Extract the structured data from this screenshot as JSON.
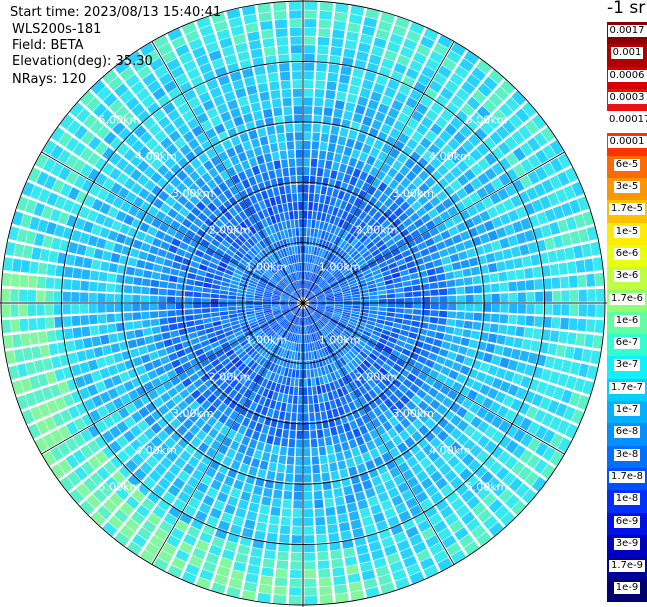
{
  "info": {
    "start_time": "Start time: 2023/08/13 15:40:41",
    "instrument": "WLS200s-181",
    "field": "Field: BETA",
    "elevation": "Elevation(deg): 35.30",
    "nrays": "NRays: 120"
  },
  "colorbar": {
    "units": "-1 sr",
    "levels": [
      {
        "label": "0.0017",
        "color": "#8b0000"
      },
      {
        "label": "0.001",
        "color": "#b00000"
      },
      {
        "label": "0.0006",
        "color": "#d40000"
      },
      {
        "label": "0.0003",
        "color": "#ee1010"
      },
      {
        "label": "0.00017",
        "color": "#ffffff"
      },
      {
        "label": "0.0001",
        "color": "#ff3300"
      },
      {
        "label": "6e-5",
        "color": "#ff6a00"
      },
      {
        "label": "3e-5",
        "color": "#ff9500"
      },
      {
        "label": "1.7e-5",
        "color": "#ffc000"
      },
      {
        "label": "1e-5",
        "color": "#ffec00"
      },
      {
        "label": "6e-6",
        "color": "#e8ff10"
      },
      {
        "label": "3e-6",
        "color": "#c0ff40"
      },
      {
        "label": "1.7e-6",
        "color": "#90ff70"
      },
      {
        "label": "1e-6",
        "color": "#60ffa0"
      },
      {
        "label": "6e-7",
        "color": "#30ffd0"
      },
      {
        "label": "3e-7",
        "color": "#10f0ff"
      },
      {
        "label": "1.7e-7",
        "color": "#00d0ff"
      },
      {
        "label": "1e-7",
        "color": "#00b0ff"
      },
      {
        "label": "6e-8",
        "color": "#0090ff"
      },
      {
        "label": "3e-8",
        "color": "#0070ff"
      },
      {
        "label": "1.7e-8",
        "color": "#0050ff"
      },
      {
        "label": "1e-8",
        "color": "#0030ff"
      },
      {
        "label": "6e-9",
        "color": "#0010e0"
      },
      {
        "label": "3e-9",
        "color": "#0000c0"
      },
      {
        "label": "1.7e-9",
        "color": "#00009a"
      },
      {
        "label": "1e-9",
        "color": "#000070"
      }
    ]
  },
  "chart_data": {
    "type": "heatmap",
    "projection": "polar",
    "field": "BETA",
    "n_rays": 120,
    "range_km_max": 5.0,
    "range_rings_km": [
      1.0,
      2.0,
      3.0,
      4.0,
      5.0
    ],
    "range_ring_labels": [
      "1.00km",
      "2.00km",
      "3.00km",
      "4.00km",
      "5.00km"
    ],
    "dominant_value_range": [
      "1e-8",
      "3e-7"
    ],
    "near_field_value": "3e-8",
    "mid_field_value": "1e-7",
    "far_field_value": "3e-7",
    "edge_max_value": "1e-6",
    "colormap": "jet"
  }
}
